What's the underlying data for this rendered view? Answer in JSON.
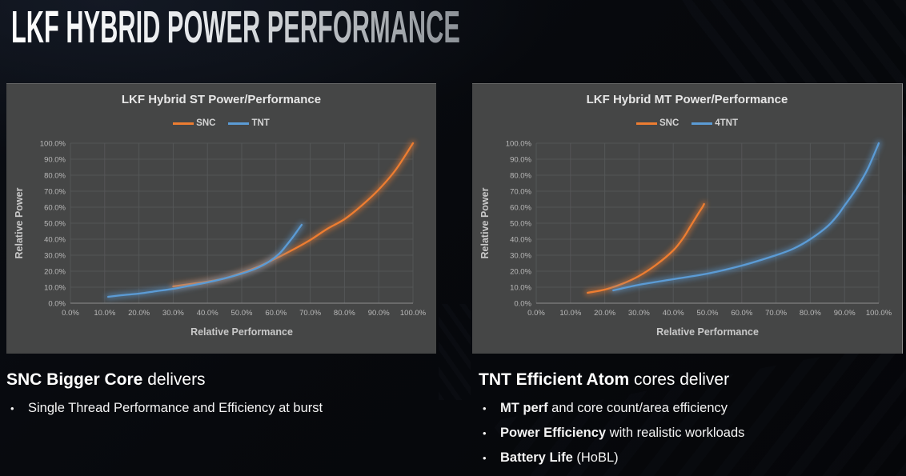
{
  "slide": {
    "title": "LKF HYBRID POWER PERFORMANCE"
  },
  "colors": {
    "background": "#07090d",
    "panel_bg": "#454646",
    "grid": "#545657",
    "axis_line": "#8f8f8f",
    "tick_text": "#b9b9b9",
    "axis_title_text": "#c9c9c9",
    "chart_title_text": "#e6e6e6",
    "snc_orange": "#ed7d31",
    "tnt_blue": "#5b9bd5"
  },
  "bullet_char": "•",
  "chart_data": [
    {
      "type": "line",
      "title": "LKF Hybrid ST Power/Performance",
      "xlabel": "Relative Performance",
      "ylabel": "Relative Power",
      "xlim": [
        0,
        100
      ],
      "ylim": [
        0,
        100
      ],
      "grid": true,
      "legend_position": "top-center",
      "x_tick_labels": [
        "0.0%",
        "10.0%",
        "20.0%",
        "30.0%",
        "40.0%",
        "50.0%",
        "60.0%",
        "70.0%",
        "80.0%",
        "90.0%",
        "100.0%"
      ],
      "y_tick_labels": [
        "0.0%",
        "10.0%",
        "20.0%",
        "30.0%",
        "40.0%",
        "50.0%",
        "60.0%",
        "70.0%",
        "80.0%",
        "90.0%",
        "100.0%"
      ],
      "series": [
        {
          "name": "SNC",
          "color": "#ed7d31",
          "points": [
            [
              30,
              10.5
            ],
            [
              35,
              12
            ],
            [
              40,
              13.5
            ],
            [
              45,
              15.5
            ],
            [
              50,
              19
            ],
            [
              55,
              23
            ],
            [
              60,
              28
            ],
            [
              65,
              33.5
            ],
            [
              70,
              39.5
            ],
            [
              75,
              46.5
            ],
            [
              80,
              52.5
            ],
            [
              85,
              61
            ],
            [
              90,
              71
            ],
            [
              95,
              83.5
            ],
            [
              100,
              100
            ]
          ]
        },
        {
          "name": "TNT",
          "color": "#5b9bd5",
          "points": [
            [
              11,
              4
            ],
            [
              15,
              5
            ],
            [
              20,
              6
            ],
            [
              25,
              7.5
            ],
            [
              30,
              9
            ],
            [
              35,
              11
            ],
            [
              40,
              13
            ],
            [
              45,
              15.5
            ],
            [
              50,
              18.5
            ],
            [
              54,
              21.5
            ],
            [
              58,
              26
            ],
            [
              61,
              31
            ],
            [
              63,
              36
            ],
            [
              65,
              41.5
            ],
            [
              66.5,
              46
            ],
            [
              67.5,
              49
            ]
          ]
        }
      ]
    },
    {
      "type": "line",
      "title": "LKF Hybrid MT Power/Performance",
      "xlabel": "Relative Performance",
      "ylabel": "Relative Power",
      "xlim": [
        0,
        100
      ],
      "ylim": [
        0,
        100
      ],
      "grid": true,
      "legend_position": "top-center",
      "x_tick_labels": [
        "0.0%",
        "10.0%",
        "20.0%",
        "30.0%",
        "40.0%",
        "50.0%",
        "60.0%",
        "70.0%",
        "80.0%",
        "90.0%",
        "100.0%"
      ],
      "y_tick_labels": [
        "0.0%",
        "10.0%",
        "20.0%",
        "30.0%",
        "40.0%",
        "50.0%",
        "60.0%",
        "70.0%",
        "80.0%",
        "90.0%",
        "100.0%"
      ],
      "series": [
        {
          "name": "SNC",
          "color": "#ed7d31",
          "points": [
            [
              15,
              6.5
            ],
            [
              20,
              8.5
            ],
            [
              25,
              12
            ],
            [
              30,
              17
            ],
            [
              35,
              24
            ],
            [
              40,
              33
            ],
            [
              43,
              41
            ],
            [
              45,
              48
            ],
            [
              47,
              55
            ],
            [
              48.5,
              60
            ],
            [
              49,
              62
            ]
          ]
        },
        {
          "name": "4TNT",
          "color": "#5b9bd5",
          "points": [
            [
              22.5,
              8
            ],
            [
              30,
              11.5
            ],
            [
              40,
              15
            ],
            [
              50,
              18.5
            ],
            [
              60,
              23.5
            ],
            [
              70,
              30
            ],
            [
              75,
              34
            ],
            [
              80,
              40
            ],
            [
              85,
              48
            ],
            [
              88,
              55
            ],
            [
              90,
              61
            ],
            [
              93,
              70
            ],
            [
              95,
              77
            ],
            [
              97,
              85
            ],
            [
              100,
              100
            ]
          ]
        }
      ]
    }
  ],
  "footer": {
    "left": {
      "heading_bold": "SNC Bigger Core",
      "heading_rest": " delivers",
      "bullets": [
        {
          "bold": "",
          "rest": "Single Thread Performance and Efficiency at burst"
        }
      ]
    },
    "right": {
      "heading_bold": "TNT Efficient Atom",
      "heading_rest": " cores deliver",
      "bullets": [
        {
          "bold": "MT perf",
          "rest": " and core count/area efficiency"
        },
        {
          "bold": "Power Efficiency",
          "rest": " with realistic workloads"
        },
        {
          "bold": "Battery Life",
          "rest": " (HoBL)"
        }
      ]
    }
  }
}
